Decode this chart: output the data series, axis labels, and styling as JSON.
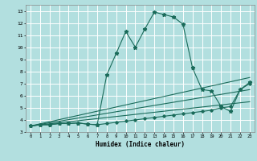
{
  "xlabel": "Humidex (Indice chaleur)",
  "bg_color": "#b2dfdf",
  "grid_color": "#ffffff",
  "line_color": "#1a6b5a",
  "xlim": [
    -0.5,
    23.5
  ],
  "ylim": [
    3,
    13.5
  ],
  "yticks": [
    3,
    4,
    5,
    6,
    7,
    8,
    9,
    10,
    11,
    12,
    13
  ],
  "xticks": [
    0,
    1,
    2,
    3,
    4,
    5,
    6,
    7,
    8,
    9,
    10,
    11,
    12,
    13,
    14,
    15,
    16,
    17,
    18,
    19,
    20,
    21,
    22,
    23
  ],
  "main_line_x": [
    0,
    1,
    2,
    3,
    4,
    5,
    6,
    7,
    8,
    9,
    10,
    11,
    12,
    13,
    14,
    15,
    16,
    17,
    18,
    19,
    20,
    21,
    22,
    23
  ],
  "main_line_y": [
    3.5,
    3.6,
    3.6,
    3.7,
    3.7,
    3.75,
    3.65,
    3.6,
    7.7,
    9.5,
    11.3,
    10.0,
    11.5,
    12.9,
    12.7,
    12.5,
    11.9,
    8.3,
    6.5,
    6.4,
    5.1,
    4.7,
    6.5,
    7.1
  ],
  "sec_line_x": [
    0,
    1,
    2,
    3,
    4,
    5,
    6,
    7,
    8,
    9,
    10,
    11,
    12,
    13,
    14,
    15,
    16,
    17,
    18,
    19,
    20,
    21,
    22,
    23
  ],
  "sec_line_y": [
    3.5,
    3.6,
    3.6,
    3.7,
    3.7,
    3.75,
    3.65,
    3.6,
    3.7,
    3.8,
    3.9,
    4.0,
    4.1,
    4.2,
    4.3,
    4.4,
    4.5,
    4.6,
    4.7,
    4.8,
    5.0,
    5.1,
    6.5,
    7.0
  ],
  "ref_lines": [
    {
      "x": [
        0,
        23
      ],
      "y": [
        3.5,
        7.5
      ]
    },
    {
      "x": [
        0,
        23
      ],
      "y": [
        3.5,
        6.5
      ]
    },
    {
      "x": [
        0,
        23
      ],
      "y": [
        3.5,
        5.5
      ]
    }
  ]
}
